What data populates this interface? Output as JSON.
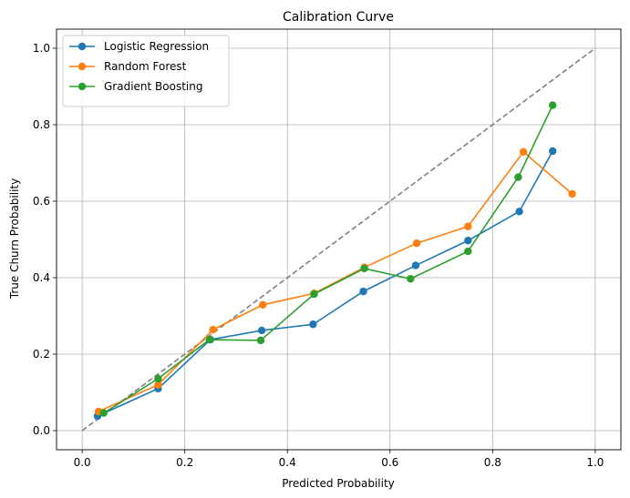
{
  "chart_data": {
    "type": "line",
    "title": "Calibration Curve",
    "xlabel": "Predicted Probability",
    "ylabel": "True Churn Probability",
    "xlim": [
      -0.05,
      1.05
    ],
    "ylim": [
      -0.05,
      1.05
    ],
    "xticks": [
      "0.0",
      "0.2",
      "0.4",
      "0.6",
      "0.8",
      "1.0"
    ],
    "yticks": [
      "0.0",
      "0.2",
      "0.4",
      "0.6",
      "0.8",
      "1.0"
    ],
    "grid": true,
    "legend_position": "top-left",
    "reference_line": {
      "x": [
        0,
        1
      ],
      "y": [
        0,
        1
      ],
      "style": "dashed",
      "color": "#808080"
    },
    "series": [
      {
        "name": "Logistic Regression",
        "color": "#1f77b4",
        "x": [
          0.03,
          0.148,
          0.25,
          0.35,
          0.45,
          0.548,
          0.65,
          0.752,
          0.852,
          0.917
        ],
        "y": [
          0.038,
          0.11,
          0.238,
          0.262,
          0.278,
          0.364,
          0.432,
          0.497,
          0.573,
          0.731
        ]
      },
      {
        "name": "Random Forest",
        "color": "#ff7f0e",
        "x": [
          0.032,
          0.148,
          0.255,
          0.352,
          0.452,
          0.55,
          0.652,
          0.752,
          0.86,
          0.955
        ],
        "y": [
          0.05,
          0.12,
          0.264,
          0.329,
          0.359,
          0.427,
          0.49,
          0.534,
          0.729,
          0.619
        ]
      },
      {
        "name": "Gradient Boosting",
        "color": "#2ca02c",
        "x": [
          0.042,
          0.148,
          0.248,
          0.348,
          0.452,
          0.55,
          0.64,
          0.752,
          0.85,
          0.917
        ],
        "y": [
          0.046,
          0.136,
          0.238,
          0.236,
          0.357,
          0.424,
          0.397,
          0.469,
          0.663,
          0.851
        ]
      }
    ]
  }
}
